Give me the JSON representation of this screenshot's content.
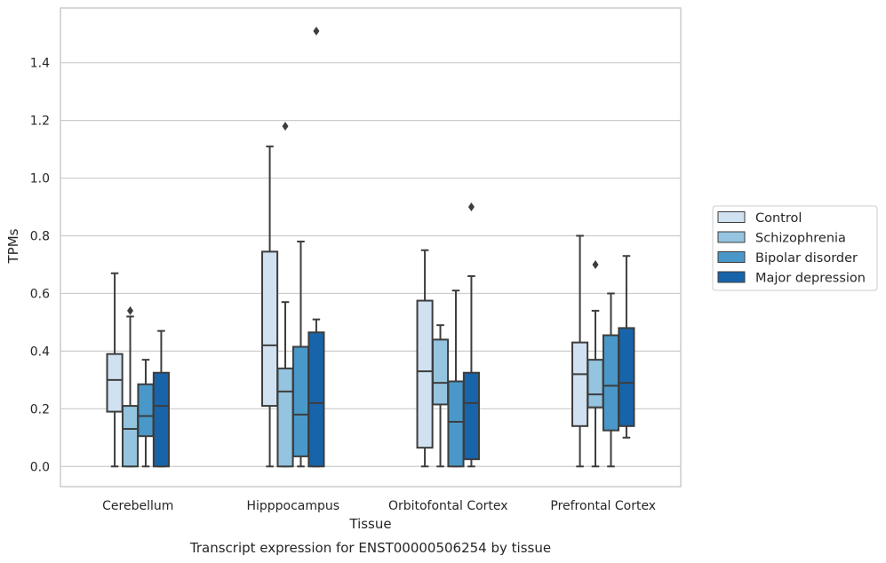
{
  "caption": "Transcript expression for ENST00000506254 by tissue",
  "chart_data": {
    "type": "box",
    "title": "",
    "xlabel": "Tissue",
    "ylabel": "TPMs",
    "ylim": [
      -0.07,
      1.59
    ],
    "yticks": [
      0.0,
      0.2,
      0.4,
      0.6,
      0.8,
      1.0,
      1.2,
      1.4
    ],
    "ytick_labels": [
      "0.0",
      "0.2",
      "0.4",
      "0.6",
      "0.8",
      "1.0",
      "1.2",
      "1.4"
    ],
    "grid": "horizontal",
    "legend_position": "right",
    "categories": [
      "Cerebellum",
      "Hipppocampus",
      "Orbitofontal Cortex",
      "Prefrontal Cortex"
    ],
    "series": [
      {
        "name": "Control",
        "color": "#d0e1f2",
        "boxes": [
          {
            "low": 0.0,
            "q1": 0.19,
            "median": 0.3,
            "q3": 0.39,
            "high": 0.67,
            "outliers": []
          },
          {
            "low": 0.0,
            "q1": 0.21,
            "median": 0.42,
            "q3": 0.745,
            "high": 1.11,
            "outliers": []
          },
          {
            "low": 0.0,
            "q1": 0.065,
            "median": 0.33,
            "q3": 0.575,
            "high": 0.75,
            "outliers": []
          },
          {
            "low": 0.0,
            "q1": 0.14,
            "median": 0.32,
            "q3": 0.43,
            "high": 0.8,
            "outliers": []
          }
        ]
      },
      {
        "name": "Schizophrenia",
        "color": "#94c4df",
        "boxes": [
          {
            "low": 0.0,
            "q1": 0.0,
            "median": 0.13,
            "q3": 0.21,
            "high": 0.52,
            "outliers": [
              0.54
            ]
          },
          {
            "low": 0.0,
            "q1": 0.0,
            "median": 0.26,
            "q3": 0.34,
            "high": 0.57,
            "outliers": [
              1.18
            ]
          },
          {
            "low": 0.0,
            "q1": 0.215,
            "median": 0.29,
            "q3": 0.44,
            "high": 0.49,
            "outliers": []
          },
          {
            "low": 0.0,
            "q1": 0.205,
            "median": 0.25,
            "q3": 0.37,
            "high": 0.54,
            "outliers": [
              0.7
            ]
          }
        ]
      },
      {
        "name": "Bipolar disorder",
        "color": "#4a98c9",
        "boxes": [
          {
            "low": 0.0,
            "q1": 0.105,
            "median": 0.175,
            "q3": 0.285,
            "high": 0.37,
            "outliers": []
          },
          {
            "low": 0.0,
            "q1": 0.035,
            "median": 0.18,
            "q3": 0.415,
            "high": 0.78,
            "outliers": []
          },
          {
            "low": 0.0,
            "q1": 0.0,
            "median": 0.155,
            "q3": 0.295,
            "high": 0.61,
            "outliers": []
          },
          {
            "low": 0.0,
            "q1": 0.125,
            "median": 0.28,
            "q3": 0.455,
            "high": 0.6,
            "outliers": []
          }
        ]
      },
      {
        "name": "Major depression",
        "color": "#1764ab",
        "boxes": [
          {
            "low": 0.0,
            "q1": 0.0,
            "median": 0.21,
            "q3": 0.325,
            "high": 0.47,
            "outliers": []
          },
          {
            "low": 0.0,
            "q1": 0.0,
            "median": 0.22,
            "q3": 0.465,
            "high": 0.51,
            "outliers": [
              1.51
            ]
          },
          {
            "low": 0.0,
            "q1": 0.025,
            "median": 0.22,
            "q3": 0.325,
            "high": 0.66,
            "outliers": [
              0.9
            ]
          },
          {
            "low": 0.1,
            "q1": 0.14,
            "median": 0.29,
            "q3": 0.48,
            "high": 0.73,
            "outliers": []
          }
        ]
      }
    ]
  }
}
